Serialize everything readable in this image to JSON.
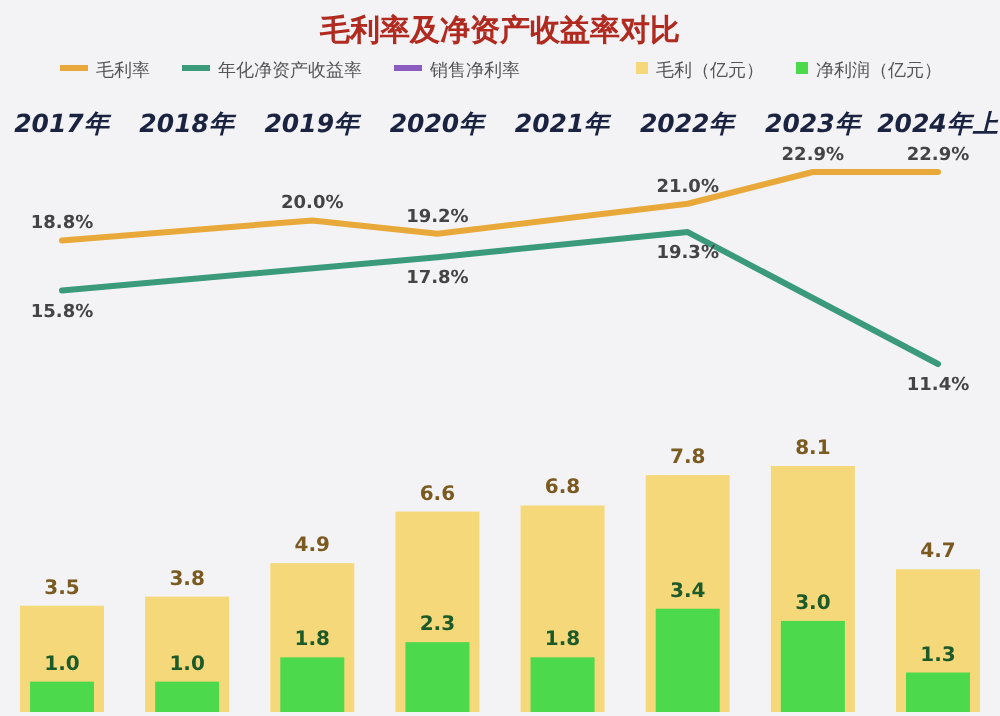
{
  "chart_data": [
    {
      "type": "line",
      "title": "毛利率及净资产收益率对比",
      "categories": [
        "2017年",
        "2018年",
        "2019年",
        "2020年",
        "2021年",
        "2022年",
        "2023年",
        "2024年上"
      ],
      "legend": "top",
      "series": [
        {
          "name": "毛利率",
          "color": "#e8a93a",
          "values": [
            18.8,
            null,
            20.0,
            19.2,
            null,
            21.0,
            22.9,
            22.9
          ],
          "value_labels": [
            "18.8%",
            null,
            "20.0%",
            "19.2%",
            null,
            "21.0%",
            "22.9%",
            "22.9%"
          ]
        },
        {
          "name": "年化净资产收益率",
          "color": "#3a9a7a",
          "values": [
            15.8,
            null,
            null,
            17.8,
            null,
            19.3,
            null,
            11.4
          ],
          "value_labels": [
            "15.8%",
            null,
            null,
            "17.8%",
            null,
            "19.3%",
            null,
            "11.4%"
          ]
        },
        {
          "name": "销售净利率",
          "color": "#8a5cc0",
          "values": [
            null,
            null,
            null,
            null,
            null,
            null,
            null,
            null
          ]
        }
      ]
    },
    {
      "type": "bar",
      "categories": [
        null,
        null,
        null,
        null,
        null,
        null,
        null,
        null
      ],
      "legend": "top",
      "series": [
        {
          "name": "毛利（亿元）",
          "color": "#f5d87a",
          "values": [
            3.5,
            3.8,
            4.9,
            6.6,
            6.8,
            7.8,
            8.1,
            4.7
          ],
          "value_labels": [
            "3.5",
            "3.8",
            "4.9",
            "6.6",
            "6.8",
            "7.8",
            "8.1",
            "4.7"
          ]
        },
        {
          "name": "净利润（亿元）",
          "color": "#4cd94c",
          "values": [
            1.0,
            1.0,
            1.8,
            2.3,
            1.8,
            3.4,
            3.0,
            1.3
          ],
          "value_labels": [
            "1.0",
            "1.0",
            "1.8",
            "2.3",
            "1.8",
            "3.4",
            "3.0",
            "1.3"
          ]
        }
      ]
    }
  ]
}
